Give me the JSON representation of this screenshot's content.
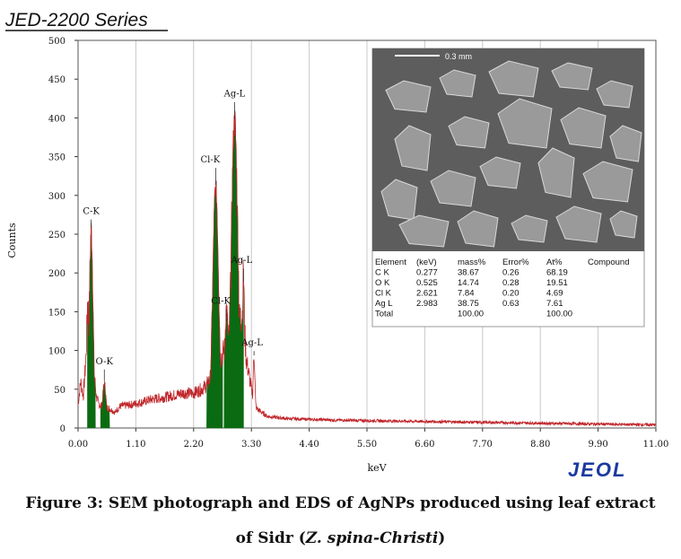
{
  "header": {
    "series_title": "JED-2200 Series"
  },
  "logo": {
    "text": "JEOL"
  },
  "caption": {
    "line1": "Figure 3: SEM photograph and EDS of AgNPs produced using leaf extract",
    "line2_prefix": "of Sidr (",
    "line2_italic": "Z. spina-Christi",
    "line2_suffix": ")"
  },
  "sem_image": {
    "scale_label": "0.3 mm"
  },
  "results_table": {
    "headers": [
      "Element",
      "(keV)",
      "mass%",
      "Error%",
      "At%",
      "Compound"
    ],
    "rows": [
      [
        "C  K",
        "0.277",
        "38.67",
        "0.26",
        "68.19",
        ""
      ],
      [
        "O  K",
        "0.525",
        "14.74",
        "0.28",
        "19.51",
        ""
      ],
      [
        "Cl K",
        "2.621",
        "7.84",
        "0.20",
        "4.69",
        ""
      ],
      [
        "Ag L",
        "2.983",
        "38.75",
        "0.63",
        "7.61",
        ""
      ],
      [
        "Total",
        "",
        "100.00",
        "",
        "100.00",
        ""
      ]
    ]
  },
  "colors": {
    "spectrum_line": "#c0262b",
    "peak_fill": "#0b6b12",
    "grid": "#c8c8c8",
    "logo": "#1a3a9e"
  },
  "chart_data": {
    "type": "area",
    "xlabel": "keV",
    "ylabel": "Counts",
    "xlim": [
      0,
      11
    ],
    "ylim": [
      0,
      500
    ],
    "x_ticks": [
      "0.00",
      "1.10",
      "2.20",
      "3.30",
      "4.40",
      "5.50",
      "6.60",
      "7.70",
      "8.80",
      "9.90",
      "11.00"
    ],
    "y_ticks": [
      "0",
      "50",
      "100",
      "150",
      "200",
      "250",
      "300",
      "350",
      "400",
      "450",
      "500"
    ],
    "grid": true,
    "background_points": [
      [
        0.0,
        30
      ],
      [
        0.05,
        60
      ],
      [
        0.1,
        40
      ],
      [
        0.15,
        90
      ],
      [
        0.18,
        160
      ],
      [
        0.35,
        40
      ],
      [
        0.4,
        30
      ],
      [
        0.6,
        25
      ],
      [
        0.7,
        20
      ],
      [
        0.8,
        28
      ],
      [
        1.0,
        30
      ],
      [
        1.2,
        33
      ],
      [
        1.4,
        37
      ],
      [
        1.6,
        39
      ],
      [
        1.8,
        42
      ],
      [
        2.0,
        45
      ],
      [
        2.2,
        45
      ],
      [
        2.35,
        50
      ],
      [
        2.45,
        55
      ],
      [
        3.15,
        150
      ],
      [
        3.2,
        90
      ],
      [
        3.3,
        50
      ],
      [
        3.4,
        25
      ],
      [
        3.6,
        15
      ],
      [
        4.0,
        12
      ],
      [
        5.0,
        10
      ],
      [
        6.0,
        9
      ],
      [
        7.0,
        8
      ],
      [
        8.0,
        7
      ],
      [
        9.0,
        6
      ],
      [
        10.0,
        5
      ],
      [
        11.0,
        4
      ]
    ],
    "peaks": [
      {
        "label": "C-K",
        "center": 0.25,
        "height": 255,
        "width": 0.05
      },
      {
        "label": "O-K",
        "center": 0.5,
        "height": 57,
        "width": 0.05
      },
      {
        "label": "Cl-K",
        "center": 2.62,
        "height": 310,
        "width": 0.08
      },
      {
        "label": "Cl-K",
        "center": 2.82,
        "height": 135,
        "width": 0.04
      },
      {
        "label": "Ag-L",
        "center": 2.98,
        "height": 395,
        "width": 0.09
      },
      {
        "label": "Ag-L",
        "center": 3.15,
        "height": 185,
        "width": 0.03
      },
      {
        "label": "Ag-L",
        "center": 3.35,
        "height": 90,
        "width": 0.03
      }
    ]
  }
}
